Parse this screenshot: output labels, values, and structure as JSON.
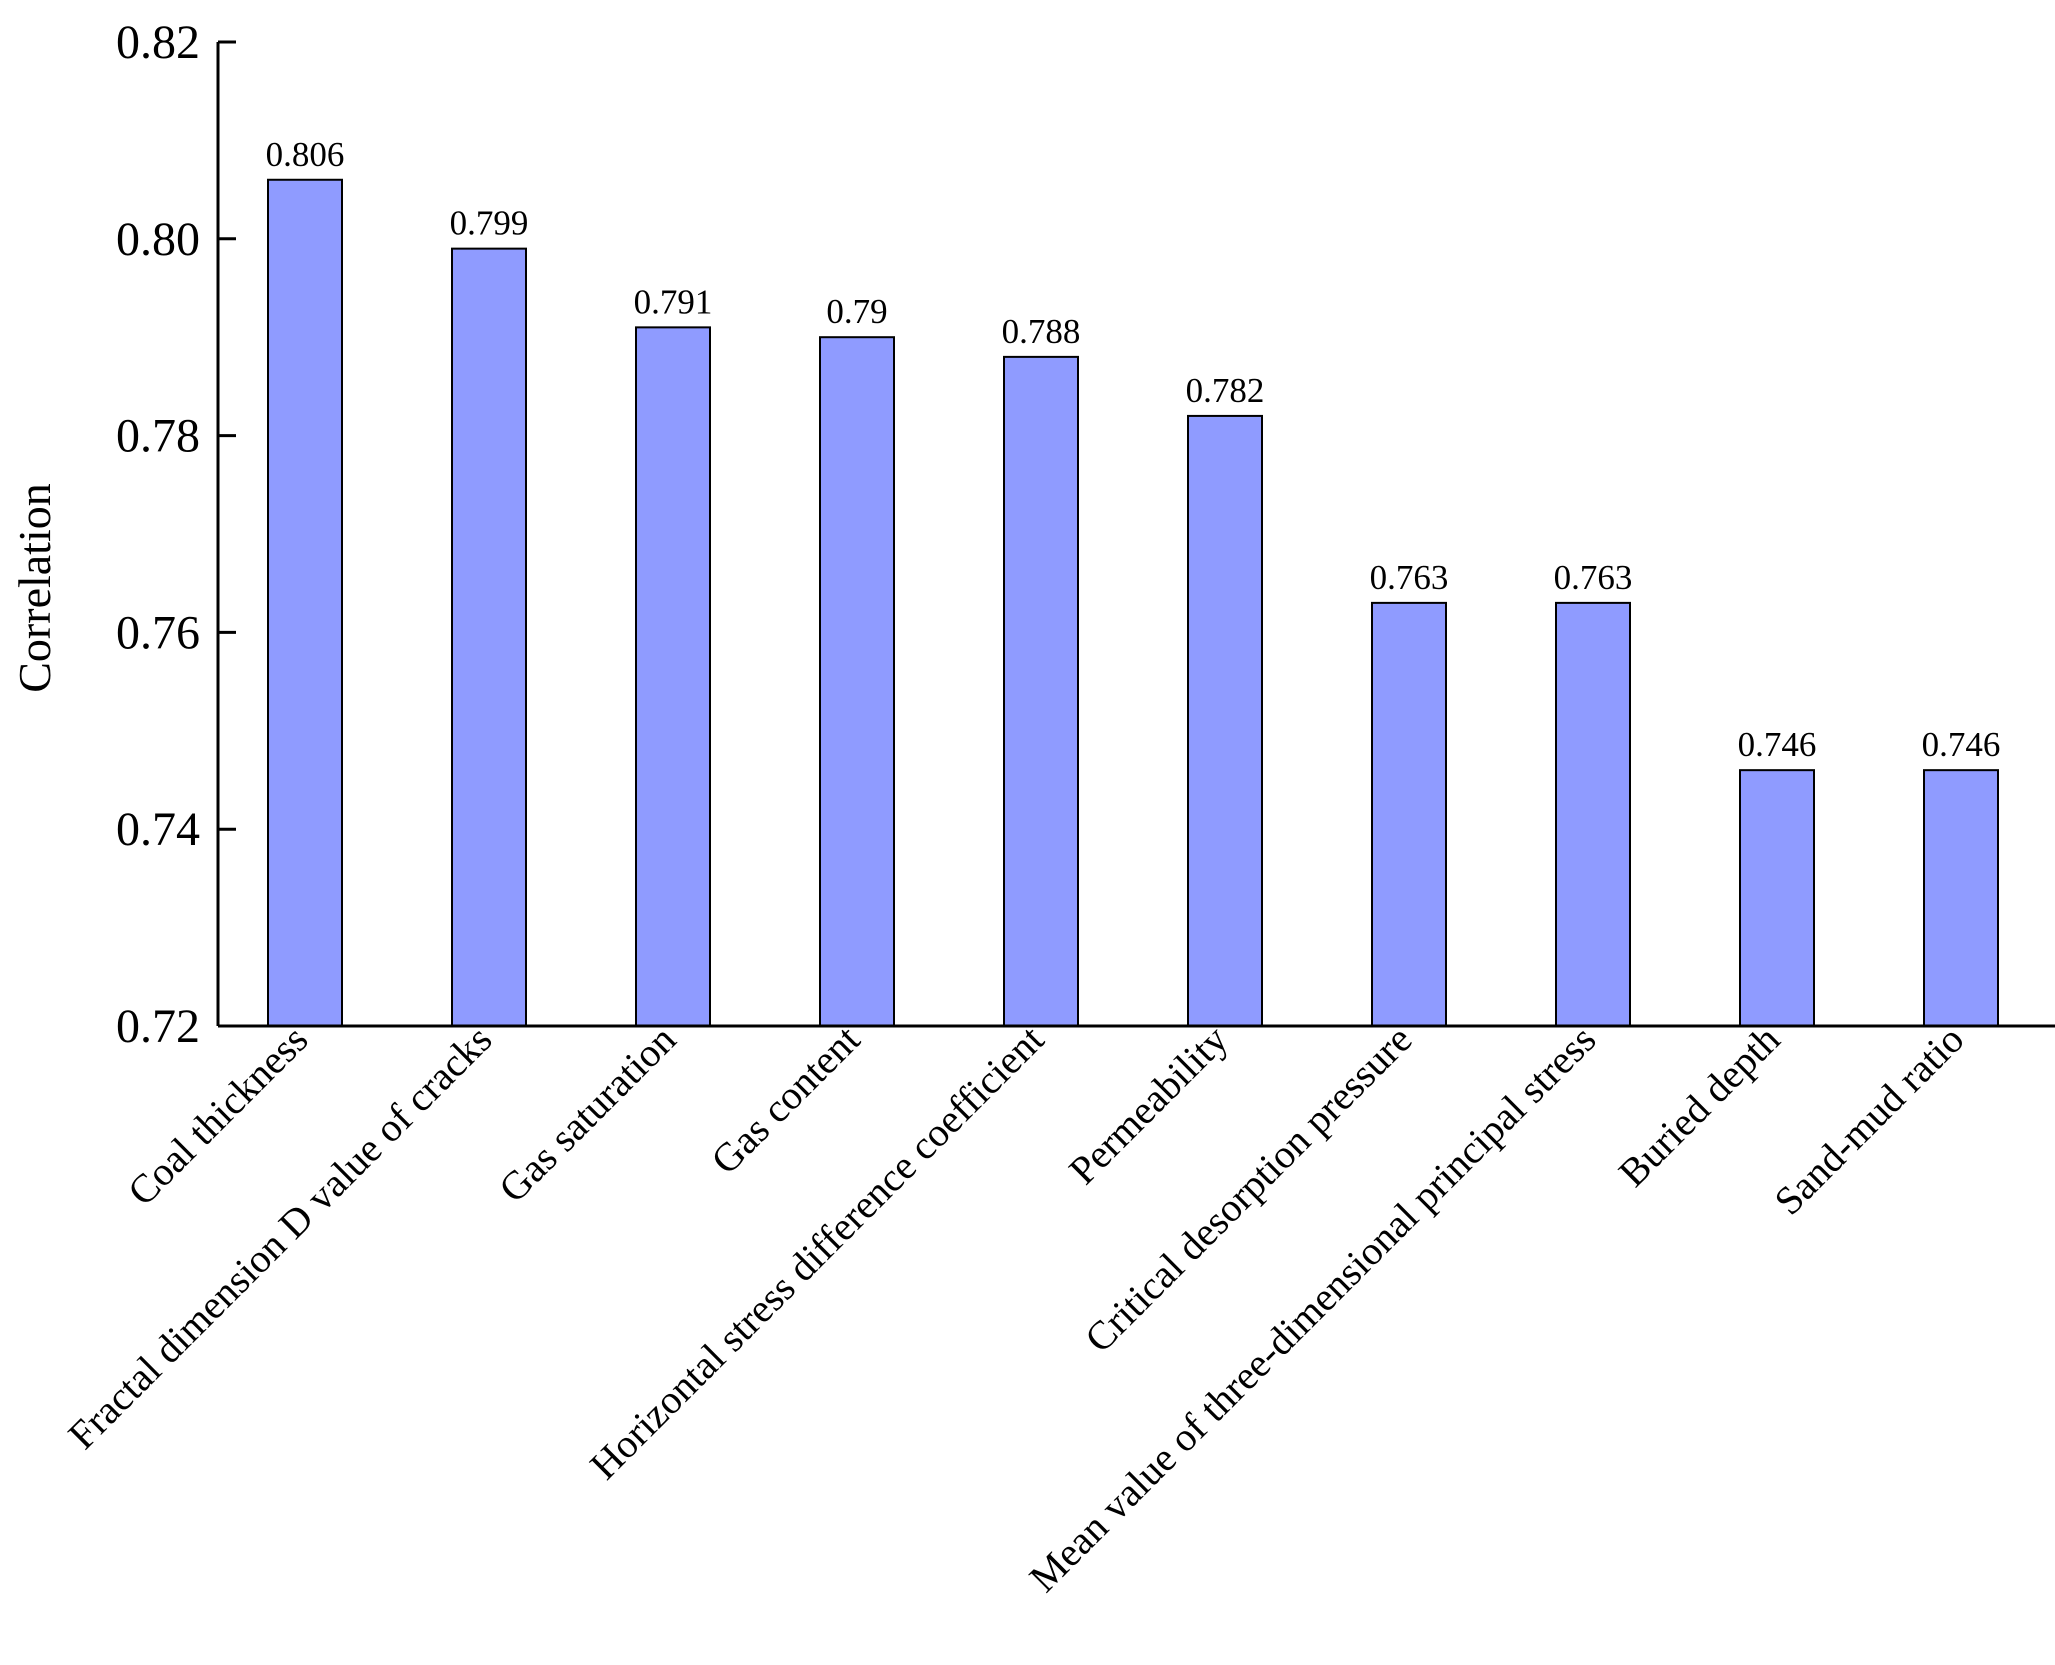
{
  "chart_data": {
    "type": "bar",
    "title": "",
    "xlabel": "",
    "ylabel": "Correlation",
    "ylim": [
      0.72,
      0.82
    ],
    "yticks": [
      "0.72",
      "0.74",
      "0.76",
      "0.78",
      "0.80",
      "0.82"
    ],
    "grid": false,
    "legend": "none",
    "categories": [
      "Coal thickness",
      "Fractal dimension D value of cracks",
      "Gas saturation",
      "Gas content",
      "Horizontal stress difference coefficient",
      "Permeability",
      "Critical desorption pressure",
      "Mean value of three-dimensional principal stress",
      "Buried depth",
      "Sand-mud ratio"
    ],
    "values": [
      0.806,
      0.799,
      0.791,
      0.79,
      0.788,
      0.782,
      0.763,
      0.763,
      0.746,
      0.746
    ],
    "value_labels": [
      "0.806",
      "0.799",
      "0.791",
      "0.79",
      "0.788",
      "0.782",
      "0.763",
      "0.763",
      "0.746",
      "0.746"
    ],
    "colors": {
      "bar_fill": "#8f9bff",
      "bar_stroke": "#000000",
      "axis": "#000000"
    }
  }
}
